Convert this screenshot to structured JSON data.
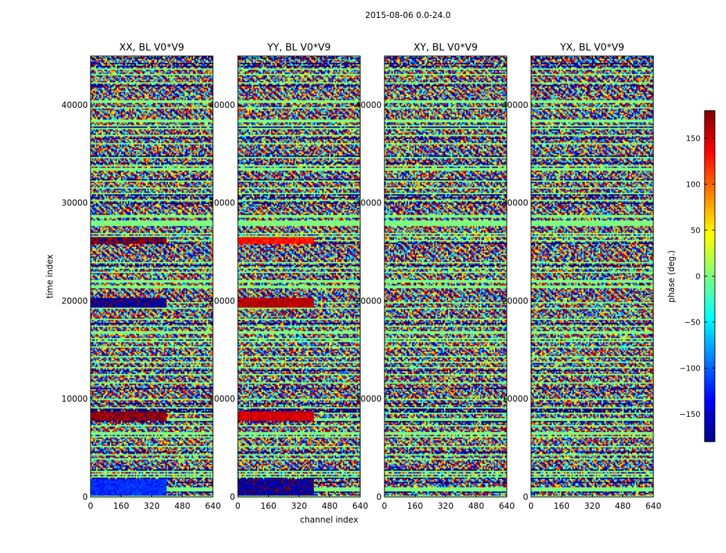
{
  "figure": {
    "suptitle": "2015-08-06 0.0-24.0"
  },
  "chart_data": {
    "type": "heatmap",
    "xlabel": "channel index",
    "ylabel": "time index",
    "xlim": [
      0,
      640
    ],
    "ylim": [
      0,
      45000
    ],
    "xticks": [
      0,
      160,
      320,
      480,
      640
    ],
    "xtick_labels": [
      "0",
      "160",
      "320",
      "480",
      "640"
    ],
    "yticks": [
      0,
      10000,
      20000,
      30000,
      40000
    ],
    "ytick_labels": [
      "0",
      "10000",
      "20000",
      "30000",
      "40000"
    ],
    "panels": [
      {
        "title": "XX, BL V0*V9",
        "polarization": "XX"
      },
      {
        "title": "YY, BL V0*V9",
        "polarization": "YY"
      },
      {
        "title": "XY, BL V0*V9",
        "polarization": "XY"
      },
      {
        "title": "YX, BL V0*V9",
        "polarization": "YX"
      }
    ],
    "colorbar": {
      "label": "phase (deg.)",
      "range": [
        -180,
        180
      ],
      "ticks": [
        150,
        100,
        50,
        0,
        -50,
        -100,
        -150
      ],
      "tick_labels": [
        "150",
        "100",
        "50",
        "0",
        "−50",
        "−100",
        "−150"
      ],
      "colormap": [
        "#00007f",
        "#0000ff",
        "#007fff",
        "#00ffff",
        "#7fff7f",
        "#ffff00",
        "#ff7f00",
        "#ff0000",
        "#7f0000"
      ]
    },
    "features": [
      {
        "panels": [
          "XX"
        ],
        "t_range": [
          200,
          1900
        ],
        "ch_range": [
          0,
          400
        ],
        "phase": -120,
        "note": "blue block"
      },
      {
        "panels": [
          "YY"
        ],
        "t_range": [
          200,
          1900
        ],
        "ch_range": [
          0,
          400
        ],
        "phase": -170,
        "note": "dark blue block"
      },
      {
        "panels": [
          "XX"
        ],
        "t_range": [
          7800,
          8700
        ],
        "ch_range": [
          0,
          400
        ],
        "phase": 170,
        "note": "red band"
      },
      {
        "panels": [
          "YY"
        ],
        "t_range": [
          7800,
          8700
        ],
        "ch_range": [
          0,
          400
        ],
        "phase": 150,
        "note": "red band"
      },
      {
        "panels": [
          "XX"
        ],
        "t_range": [
          19300,
          20300
        ],
        "ch_range": [
          0,
          400
        ],
        "phase": -170,
        "note": "dark blue band"
      },
      {
        "panels": [
          "YY"
        ],
        "t_range": [
          19300,
          20300
        ],
        "ch_range": [
          0,
          400
        ],
        "phase": 160,
        "note": "red band"
      },
      {
        "panels": [
          "XX"
        ],
        "t_range": [
          25800,
          26500
        ],
        "ch_range": [
          0,
          400
        ],
        "phase": 175,
        "note": "dark red band"
      },
      {
        "panels": [
          "YY"
        ],
        "t_range": [
          25800,
          26500
        ],
        "ch_range": [
          0,
          400
        ],
        "phase": 130,
        "note": "orange band"
      }
    ]
  }
}
